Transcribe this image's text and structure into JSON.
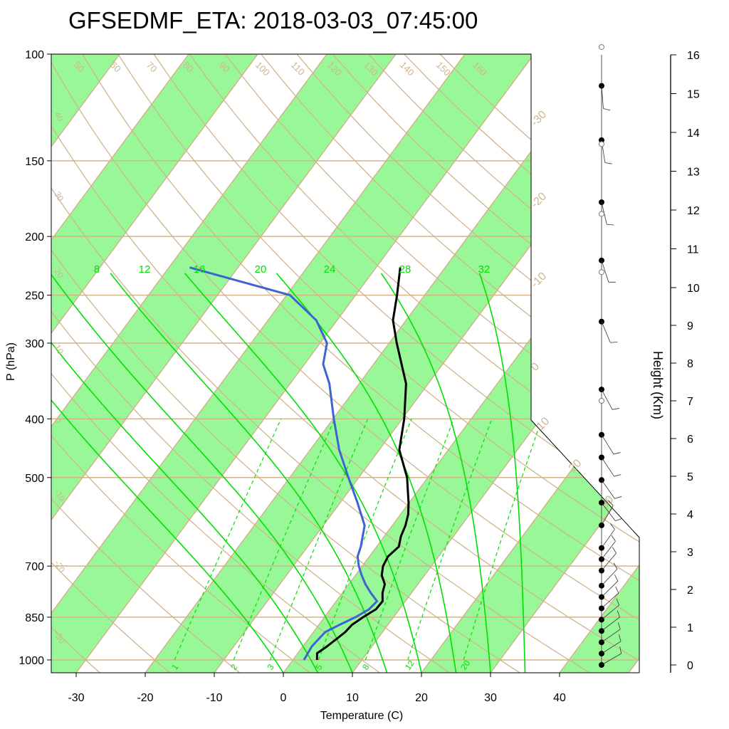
{
  "title": "GFSEDMF_ETA: 2018-03-03_07:45:00",
  "colors": {
    "green_band": "#98f898",
    "tan": "#d2b48c",
    "mixing": "#00e000",
    "temperature": "#000000",
    "dewpoint": "#3c64d2"
  },
  "chart_data": {
    "type": "line",
    "chart_kind": "Skew-T log-P diagram",
    "xlabel": "Temperature (C)",
    "ylabel": "P (hPa)",
    "right_label": "Height (Km)",
    "x_ticks": [
      -30,
      -20,
      -10,
      0,
      10,
      20,
      30,
      40
    ],
    "xlim": [
      -33.5,
      51
    ],
    "p_ticks": [
      100,
      150,
      200,
      250,
      300,
      400,
      500,
      700,
      850,
      1000
    ],
    "plim": [
      100,
      1050
    ],
    "height_ticks": [
      0,
      1,
      2,
      3,
      4,
      5,
      6,
      7,
      8,
      9,
      10,
      11,
      12,
      13,
      14,
      15,
      16
    ],
    "isotherm_labels": [
      "-30",
      "-20",
      "-10",
      "0",
      "10",
      "20",
      "30"
    ],
    "left_isotherm_labels": [
      "40",
      "30",
      "20",
      "10",
      "0",
      "-10",
      "-20",
      "-30"
    ],
    "dry_adiabat_labels": [
      "50",
      "60",
      "70",
      "80",
      "90",
      "100",
      "110",
      "120",
      "130",
      "140",
      "150",
      "160"
    ],
    "moist_adiabat_labels": [
      "8",
      "12",
      "16",
      "20",
      "24",
      "28",
      "32"
    ],
    "mixing_ratio_labels": [
      "1",
      "2",
      "3",
      "5",
      "8",
      "12",
      "20"
    ],
    "series": [
      {
        "name": "temperature",
        "points": [
          {
            "p": 1000,
            "t": 3.5
          },
          {
            "p": 975,
            "t": 2.8
          },
          {
            "p": 950,
            "t": 3.5
          },
          {
            "p": 900,
            "t": 4.6
          },
          {
            "p": 875,
            "t": 4.8
          },
          {
            "p": 850,
            "t": 5.6
          },
          {
            "p": 825,
            "t": 6.6
          },
          {
            "p": 800,
            "t": 6.7
          },
          {
            "p": 775,
            "t": 5.8
          },
          {
            "p": 750,
            "t": 5.2
          },
          {
            "p": 725,
            "t": 3.8
          },
          {
            "p": 700,
            "t": 3.0
          },
          {
            "p": 675,
            "t": 2.7
          },
          {
            "p": 650,
            "t": 3.2
          },
          {
            "p": 625,
            "t": 2.4
          },
          {
            "p": 600,
            "t": 1.9
          },
          {
            "p": 575,
            "t": 1.1
          },
          {
            "p": 550,
            "t": -0.1
          },
          {
            "p": 500,
            "t": -3.0
          },
          {
            "p": 450,
            "t": -7.1
          },
          {
            "p": 400,
            "t": -9.7
          },
          {
            "p": 350,
            "t": -13.2
          },
          {
            "p": 300,
            "t": -18.9
          },
          {
            "p": 275,
            "t": -21.9
          },
          {
            "p": 250,
            "t": -24.0
          },
          {
            "p": 225,
            "t": -26.5
          }
        ]
      },
      {
        "name": "dewpoint",
        "points": [
          {
            "p": 1000,
            "t": 1.6
          },
          {
            "p": 950,
            "t": 1.3
          },
          {
            "p": 900,
            "t": 1.7
          },
          {
            "p": 875,
            "t": 3.0
          },
          {
            "p": 850,
            "t": 4.5
          },
          {
            "p": 825,
            "t": 5.6
          },
          {
            "p": 800,
            "t": 5.9
          },
          {
            "p": 775,
            "t": 4.1
          },
          {
            "p": 750,
            "t": 2.4
          },
          {
            "p": 725,
            "t": 0.9
          },
          {
            "p": 700,
            "t": -0.5
          },
          {
            "p": 675,
            "t": -1.7
          },
          {
            "p": 650,
            "t": -2.3
          },
          {
            "p": 600,
            "t": -4.0
          },
          {
            "p": 550,
            "t": -7.5
          },
          {
            "p": 500,
            "t": -11.5
          },
          {
            "p": 450,
            "t": -15.8
          },
          {
            "p": 400,
            "t": -19.9
          },
          {
            "p": 350,
            "t": -24.3
          },
          {
            "p": 325,
            "t": -27.3
          },
          {
            "p": 300,
            "t": -29.0
          },
          {
            "p": 275,
            "t": -33.0
          },
          {
            "p": 250,
            "t": -39.5
          },
          {
            "p": 225,
            "t": -57.0
          }
        ]
      }
    ],
    "wind_profile": {
      "closed_marker_heights_km": [
        0,
        0.3,
        0.6,
        0.9,
        1.2,
        1.5,
        1.8,
        2.1,
        2.5,
        2.8,
        3.1,
        3.7,
        4.3,
        4.9,
        5.5,
        6.1,
        7.3,
        9.1,
        10.7,
        12.2,
        13.8,
        15.2
      ],
      "open_marker_heights_km": [
        7.0,
        10.4,
        11.9,
        13.7,
        16.2
      ]
    }
  }
}
